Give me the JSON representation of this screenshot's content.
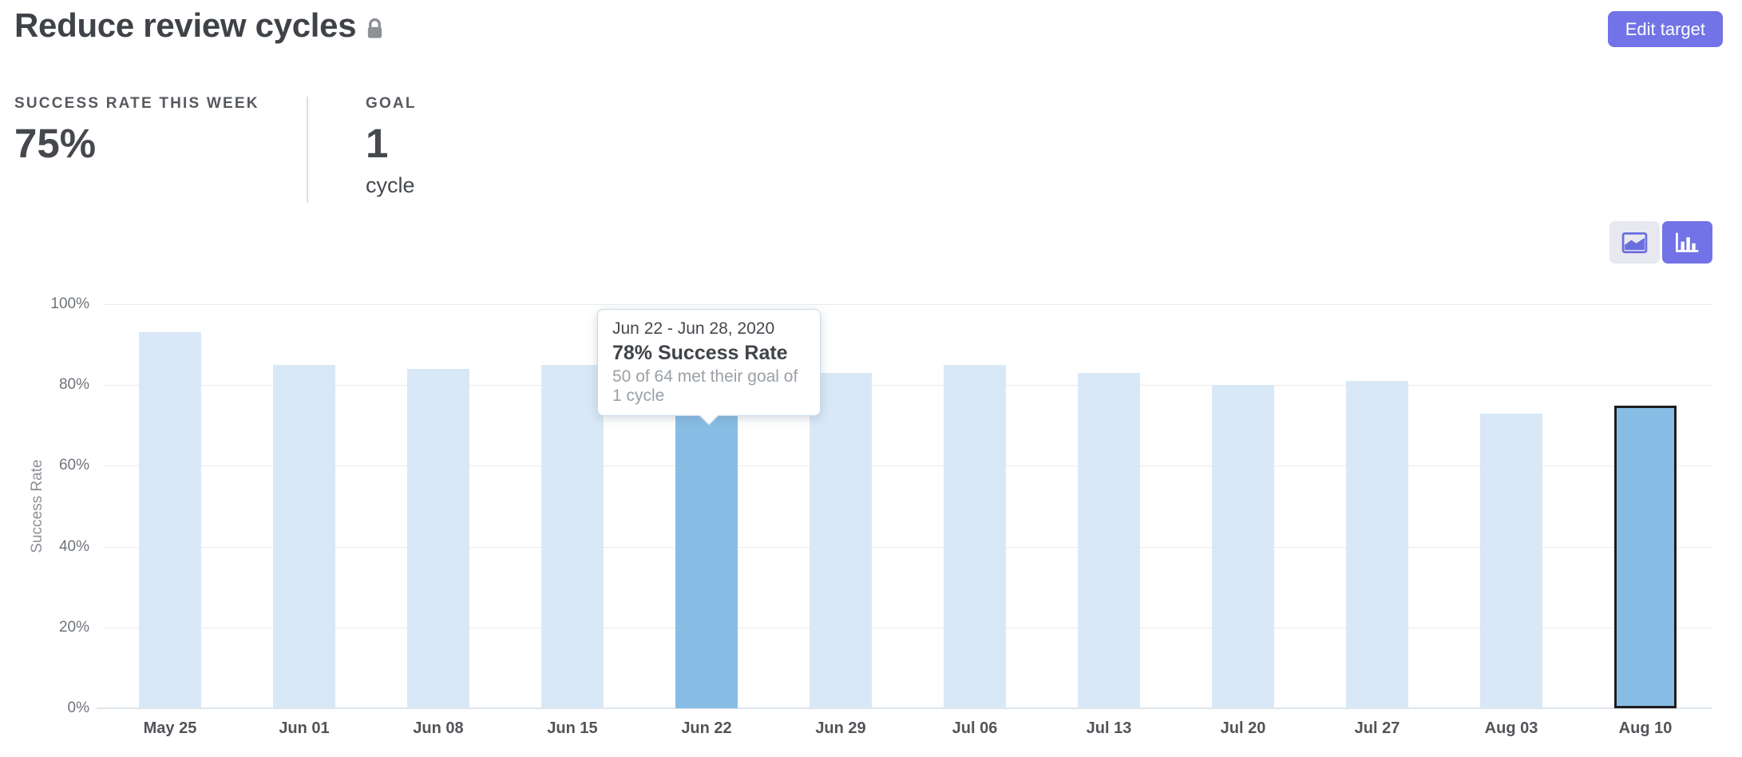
{
  "theme": {
    "accent": "#7173e6",
    "toggle_inactive_bg": "#e8e8f1",
    "toggle_inactive_icon": "#6b6edd"
  },
  "header": {
    "title": "Reduce review cycles",
    "lock_icon": "lock-icon",
    "edit_button_label": "Edit target"
  },
  "stats": [
    {
      "label": "SUCCESS RATE THIS WEEK",
      "value": "75%"
    },
    {
      "label": "GOAL",
      "value": "1",
      "unit": "cycle"
    }
  ],
  "chart_controls": {
    "active_view": "bar",
    "options": [
      "area-chart-icon",
      "bar-chart-icon"
    ]
  },
  "tooltip": {
    "date_range": "Jun 22 - Jun 28, 2020",
    "headline": "78% Success Rate",
    "detail": "50 of 64 met their goal of 1 cycle"
  },
  "chart_data": {
    "type": "bar",
    "title": "",
    "xlabel": "",
    "ylabel": "Success Rate",
    "ylim": [
      0,
      100
    ],
    "y_ticks": [
      "100%",
      "80%",
      "60%",
      "40%",
      "20%",
      "0%"
    ],
    "grid": true,
    "legend": false,
    "categories": [
      "May 25",
      "Jun 01",
      "Jun 08",
      "Jun 15",
      "Jun 22",
      "Jun 29",
      "Jul 06",
      "Jul 13",
      "Jul 20",
      "Jul 27",
      "Aug 03",
      "Aug 10"
    ],
    "values": [
      93,
      85,
      84,
      85,
      78,
      83,
      85,
      83,
      80,
      81,
      73,
      75
    ],
    "highlighted_index": 4,
    "current_week_index": 11,
    "colors": {
      "bar_default": "#d9e8f6",
      "bar_highlight": "#87bde4",
      "bar_current_outline": "#1d1d20",
      "gridline": "#eaeaea",
      "axis_line": "#dee5eb"
    }
  }
}
